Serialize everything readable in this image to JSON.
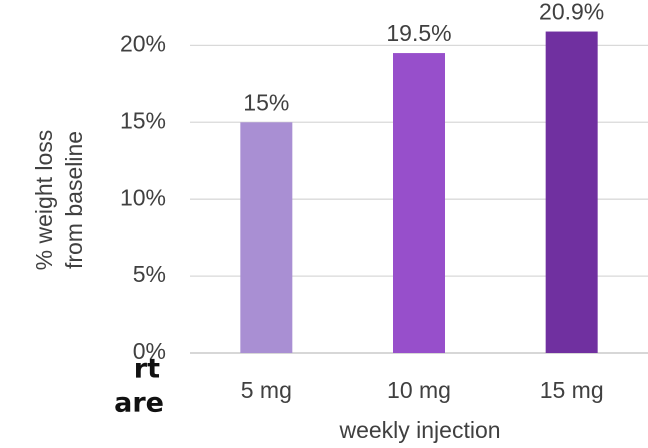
{
  "chart_data": {
    "type": "bar",
    "categories": [
      "5 mg",
      "10 mg",
      "15 mg"
    ],
    "values": [
      15,
      19.5,
      20.9
    ],
    "value_labels": [
      "15%",
      "19.5%",
      "20.9%"
    ],
    "colors": [
      "#a98fd3",
      "#974fcb",
      "#7030a0"
    ],
    "xlabel": "weekly injection",
    "ylabel": [
      "% weight loss",
      "from baseline"
    ],
    "ylim": [
      0,
      21
    ],
    "yticks": [
      {
        "value": 0,
        "label": "0%"
      },
      {
        "value": 5,
        "label": "5%"
      },
      {
        "value": 10,
        "label": "10%"
      },
      {
        "value": 15,
        "label": "15%"
      },
      {
        "value": 20,
        "label": "20%"
      }
    ],
    "grid": true,
    "annotations": [
      "rt",
      "are"
    ]
  }
}
